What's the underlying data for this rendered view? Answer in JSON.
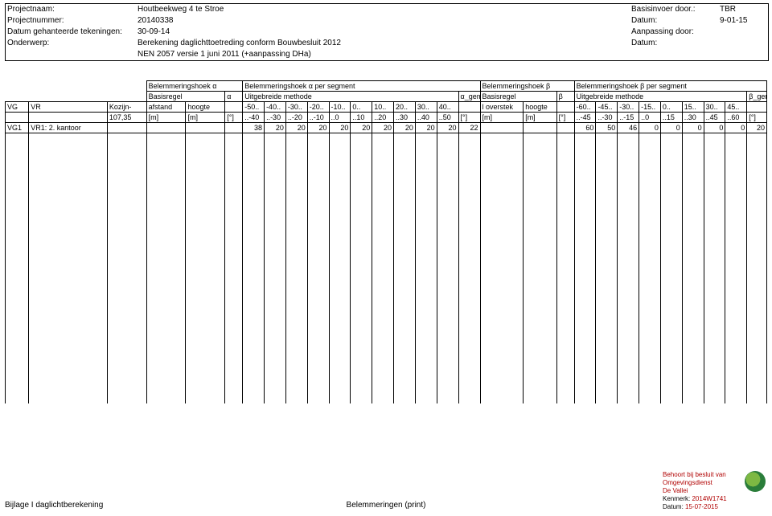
{
  "header": {
    "rows": [
      {
        "label": "Projectnaam:",
        "value": "Houtbeekweg 4 te Stroe",
        "rlabel": "Basisinvoer door.:",
        "rvalue": "TBR"
      },
      {
        "label": "Projectnummer:",
        "value": "20140338",
        "rlabel": "Datum:",
        "rvalue": "9-01-15"
      },
      {
        "label": "Datum gehanteerde tekeningen:",
        "value": "30-09-14",
        "rlabel": "Aanpassing door:",
        "rvalue": ""
      },
      {
        "label": "Onderwerp:",
        "value": "Berekening daglichttoetreding conform Bouwbesluit 2012",
        "rlabel": "Datum:",
        "rvalue": ""
      },
      {
        "label": "",
        "value": "NEN 2057 versie 1 juni 2011 (+aanpassing DHa)",
        "rlabel": "",
        "rvalue": ""
      }
    ]
  },
  "table": {
    "section_titles": {
      "a1": "Belemmeringshoek α",
      "a2": "Belemmeringshoek α per segment",
      "b1": "Belemmeringshoek β",
      "b2": "Belemmeringshoek β per segment"
    },
    "sub_titles": {
      "basis_a": "Basisregel",
      "basis_a_sym": "α",
      "uitg_a": "Uitgebreide methode",
      "uitg_a_sym": "α_gem",
      "basis_b": "Basisregel",
      "basis_b_sym": "β",
      "uitg_b": "Uitgebreide methode",
      "uitg_b_sym": "β_gem"
    },
    "col_headers": {
      "vg": "VG",
      "vr": "VR",
      "kozijn": "Kozijn-",
      "afstand": "afstand",
      "hoogte_a": "hoogte",
      "segA": [
        "-50..",
        "-40..",
        "-30..",
        "-20..",
        "-10..",
        "0..",
        "10..",
        "20..",
        "30..",
        "40.."
      ],
      "loverstek": "l overstek",
      "hoogte_b": "hoogte",
      "segB": [
        "-60..",
        "-45..",
        "-30..",
        "-15..",
        "0..",
        "15..",
        "30..",
        "45.."
      ]
    },
    "unit_row": {
      "kozijn_val": "107,35",
      "m": "[m]",
      "deg": "[°]",
      "segA": [
        "..-40",
        "..-30",
        "..-20",
        "..-10",
        "..0",
        "..10",
        "..20",
        "..30",
        "..40",
        "..50"
      ],
      "segB": [
        "..-45",
        "..-30",
        "..-15",
        "..0",
        "..15",
        "..30",
        "..45",
        "..60"
      ]
    },
    "data_row": {
      "vg": "VG1",
      "vr": "VR1: 2. kantoor",
      "segA_first": "38",
      "segA_rest": [
        "20",
        "20",
        "20",
        "20",
        "20",
        "20",
        "20",
        "20",
        "20"
      ],
      "agem": "22",
      "segB": [
        "60",
        "50",
        "46",
        "0",
        "0",
        "0",
        "0",
        "0"
      ],
      "bgem": "20"
    }
  },
  "footer": {
    "left": "Bijlage I daglichtberekening",
    "center": "Belemmeringen (print)"
  },
  "stamp": {
    "l1": "Behoort bij besluit van",
    "l2": "Omgevingsdienst",
    "l3": "De Vallei",
    "l4a": "Kenmerk:",
    "l4b": "2014W1741",
    "l5a": "Datum:",
    "l5b": "15-07-2015"
  }
}
